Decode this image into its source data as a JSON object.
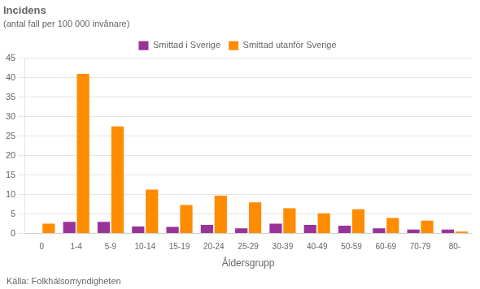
{
  "chart_data": {
    "type": "bar",
    "title": "Incidens",
    "subtitle": "(antal fall per 100 000 invånare)",
    "xlabel": "Åldersgrupp",
    "categories": [
      "0",
      "1-4",
      "5-9",
      "10-14",
      "15-19",
      "20-24",
      "25-29",
      "30-39",
      "40-49",
      "50-59",
      "60-69",
      "70-79",
      "80-"
    ],
    "series": [
      {
        "name": "Smittad i Sverige",
        "color": "#993399",
        "values": [
          0,
          3.0,
          3.0,
          1.8,
          1.7,
          2.2,
          1.3,
          2.5,
          2.2,
          2.0,
          1.3,
          1.0,
          1.0
        ]
      },
      {
        "name": "Smittad utanför Sverige",
        "color": "#FF8C00",
        "values": [
          2.5,
          41.0,
          27.5,
          11.3,
          7.3,
          9.7,
          8.0,
          6.5,
          5.2,
          6.2,
          4.0,
          3.3,
          0.5
        ]
      }
    ],
    "ylim": [
      0,
      45
    ],
    "yticks": [
      0,
      5,
      10,
      15,
      20,
      25,
      30,
      35,
      40,
      45
    ],
    "grid": true,
    "legend": "top",
    "annotations": [
      "Källa: Folkhälsomyndigheten"
    ]
  }
}
